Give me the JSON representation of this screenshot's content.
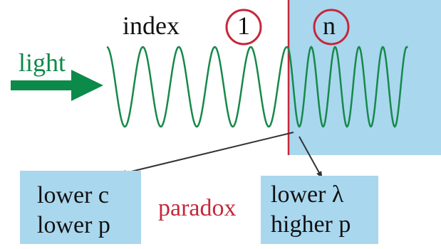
{
  "labels": {
    "index": "index",
    "medium_1": "1",
    "medium_n": "n",
    "light": "light",
    "paradox": "paradox"
  },
  "left_box": {
    "line1": "lower c",
    "line2": "lower p"
  },
  "right_box": {
    "line1": "lower λ",
    "line2": "higher p"
  },
  "colors": {
    "medium": "#a9d7ee",
    "wave": "#16894a",
    "arrow": "#0c8a4a",
    "interface": "#c4283a",
    "circle": "#c4283a",
    "paradox": "#c4283a",
    "pointer": "#333333",
    "text": "#111111"
  },
  "icons": {
    "light_arrow": "arrow-right-icon"
  }
}
